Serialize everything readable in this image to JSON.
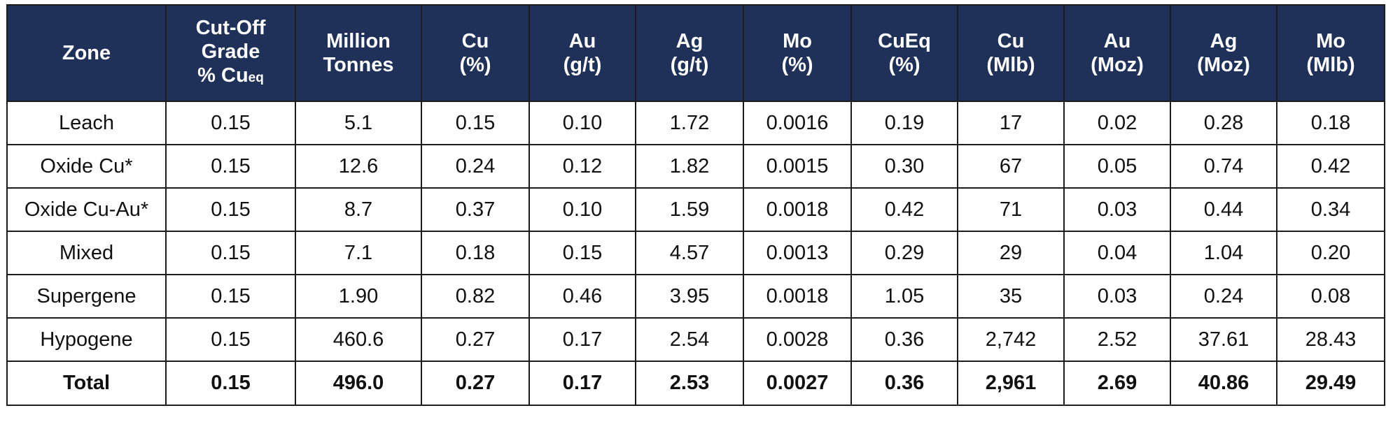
{
  "header": {
    "zone": "Zone",
    "cutoff": [
      "Cut-Off",
      "Grade",
      "% Cu"
    ],
    "cutoff_sub": "eq",
    "tonnes": [
      "Million",
      "Tonnes"
    ],
    "cu_pct": [
      "Cu",
      "(%)"
    ],
    "au_gt": [
      "Au",
      "(g/t)"
    ],
    "ag_gt": [
      "Ag",
      "(g/t)"
    ],
    "mo_pct": [
      "Mo",
      "(%)"
    ],
    "cueq_pct": [
      "CuEq",
      "(%)"
    ],
    "cu_mlb": [
      "Cu",
      "(Mlb)"
    ],
    "au_moz": [
      "Au",
      "(Moz)"
    ],
    "ag_moz": [
      "Ag",
      "(Moz)"
    ],
    "mo_mlb": [
      "Mo",
      "(Mlb)"
    ]
  },
  "rows": [
    [
      "Leach",
      "0.15",
      "5.1",
      "0.15",
      "0.10",
      "1.72",
      "0.0016",
      "0.19",
      "17",
      "0.02",
      "0.28",
      "0.18"
    ],
    [
      "Oxide Cu*",
      "0.15",
      "12.6",
      "0.24",
      "0.12",
      "1.82",
      "0.0015",
      "0.30",
      "67",
      "0.05",
      "0.74",
      "0.42"
    ],
    [
      "Oxide Cu-Au*",
      "0.15",
      "8.7",
      "0.37",
      "0.10",
      "1.59",
      "0.0018",
      "0.42",
      "71",
      "0.03",
      "0.44",
      "0.34"
    ],
    [
      "Mixed",
      "0.15",
      "7.1",
      "0.18",
      "0.15",
      "4.57",
      "0.0013",
      "0.29",
      "29",
      "0.04",
      "1.04",
      "0.20"
    ],
    [
      "Supergene",
      "0.15",
      "1.90",
      "0.82",
      "0.46",
      "3.95",
      "0.0018",
      "1.05",
      "35",
      "0.03",
      "0.24",
      "0.08"
    ],
    [
      "Hypogene",
      "0.15",
      "460.6",
      "0.27",
      "0.17",
      "2.54",
      "0.0028",
      "0.36",
      "2,742",
      "2.52",
      "37.61",
      "28.43"
    ]
  ],
  "total": [
    "Total",
    "0.15",
    "496.0",
    "0.27",
    "0.17",
    "2.53",
    "0.0027",
    "0.36",
    "2,961",
    "2.69",
    "40.86",
    "29.49"
  ],
  "colors": {
    "header_bg": "#1f3059",
    "header_text": "#ffffff",
    "border": "#1c1c1c"
  }
}
